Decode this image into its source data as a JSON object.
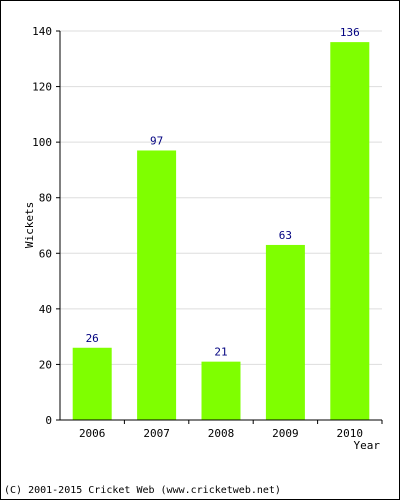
{
  "chart_data": {
    "type": "bar",
    "categories": [
      "2006",
      "2007",
      "2008",
      "2009",
      "2010"
    ],
    "values": [
      26,
      97,
      21,
      63,
      136
    ],
    "data_labels": [
      "26",
      "97",
      "21",
      "63",
      "136"
    ],
    "title": "",
    "xlabel": "Year",
    "ylabel": "Wickets",
    "ylim": [
      0,
      140
    ],
    "yticks": [
      0,
      20,
      40,
      60,
      80,
      100,
      120,
      140
    ],
    "grid": true,
    "legend": "none",
    "bar_color": "#7fff00"
  },
  "footer": {
    "copyright": "(C) 2001-2015 Cricket Web (www.cricketweb.net)"
  }
}
